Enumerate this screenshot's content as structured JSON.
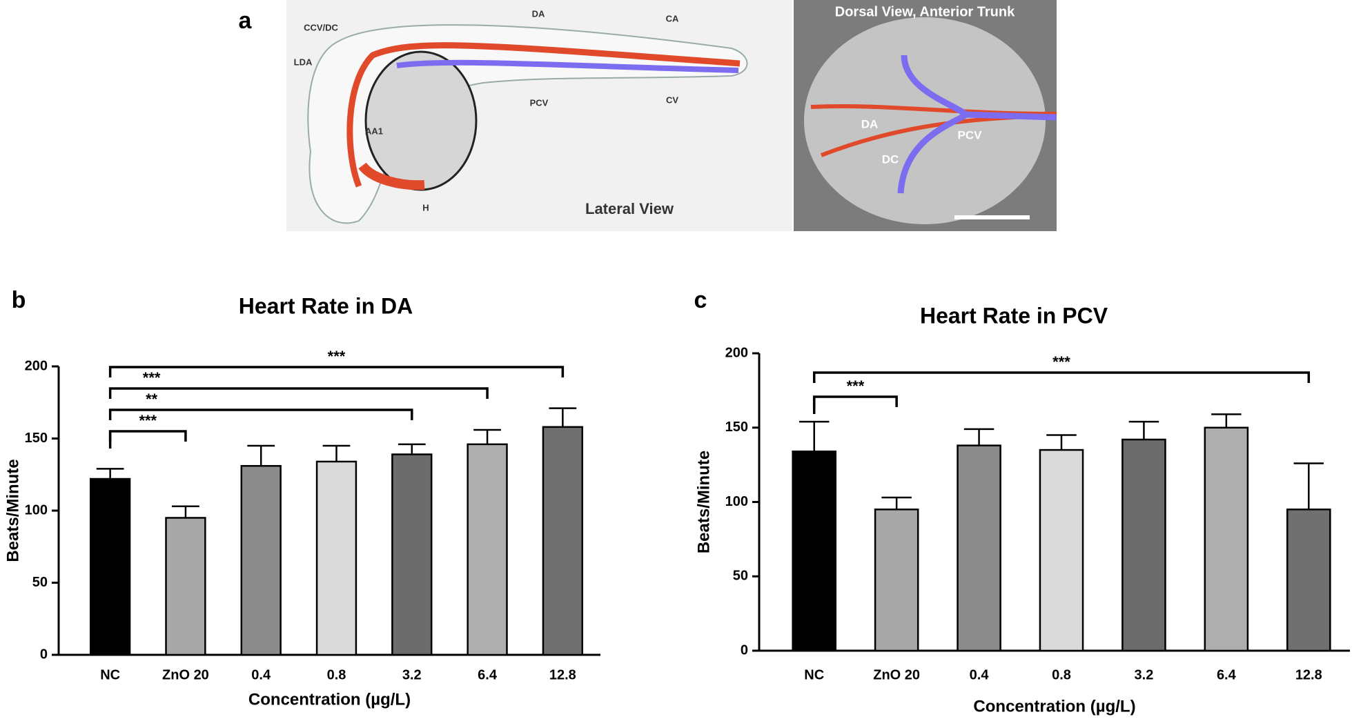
{
  "panel_a": {
    "label": "a",
    "lateral": {
      "labels": [
        "CCV/DC",
        "DA",
        "CA",
        "LDA",
        "PCV",
        "CV",
        "AA1",
        "H"
      ],
      "caption": "Lateral View"
    },
    "dorsal": {
      "caption": "Dorsal View, Anterior Trunk",
      "labels": [
        "DA",
        "PCV",
        "DC"
      ]
    }
  },
  "chart_data": [
    {
      "panel_label": "b",
      "type": "bar",
      "title": "Heart Rate in DA",
      "xlabel": "Concentration (µg/L)",
      "ylabel": "Beats/Minute",
      "categories": [
        "NC",
        "ZnO 20",
        "0.4",
        "0.8",
        "3.2",
        "6.4",
        "12.8"
      ],
      "values": [
        122,
        95,
        131,
        134,
        139,
        146,
        158
      ],
      "errors": [
        7,
        8,
        14,
        11,
        7,
        10,
        13
      ],
      "colors": [
        "#000000",
        "#a8a8a8",
        "#8c8c8c",
        "#dadada",
        "#6c6c6c",
        "#aeaeae",
        "#707070"
      ],
      "ylim": [
        0,
        200
      ],
      "yticks": [
        0,
        50,
        100,
        150,
        200
      ],
      "significance": [
        {
          "from": "NC",
          "to": "ZnO 20",
          "label": "***"
        },
        {
          "from": "NC",
          "to": "3.2",
          "label": "**"
        },
        {
          "from": "NC",
          "to": "6.4",
          "label": "***"
        },
        {
          "from": "NC",
          "to": "12.8",
          "label": "***"
        }
      ]
    },
    {
      "panel_label": "c",
      "type": "bar",
      "title": "Heart Rate in PCV",
      "xlabel": "Concentration (µg/L)",
      "ylabel": "Beats/Minute",
      "categories": [
        "NC",
        "ZnO 20",
        "0.4",
        "0.8",
        "3.2",
        "6.4",
        "12.8"
      ],
      "values": [
        134,
        95,
        138,
        135,
        142,
        150,
        95
      ],
      "errors": [
        20,
        8,
        11,
        10,
        12,
        9,
        31
      ],
      "colors": [
        "#000000",
        "#a8a8a8",
        "#8c8c8c",
        "#dadada",
        "#6c6c6c",
        "#aeaeae",
        "#707070"
      ],
      "ylim": [
        0,
        200
      ],
      "yticks": [
        0,
        50,
        100,
        150,
        200
      ],
      "significance": [
        {
          "from": "NC",
          "to": "ZnO 20",
          "label": "***"
        },
        {
          "from": "NC",
          "to": "12.8",
          "label": "***"
        }
      ]
    }
  ]
}
